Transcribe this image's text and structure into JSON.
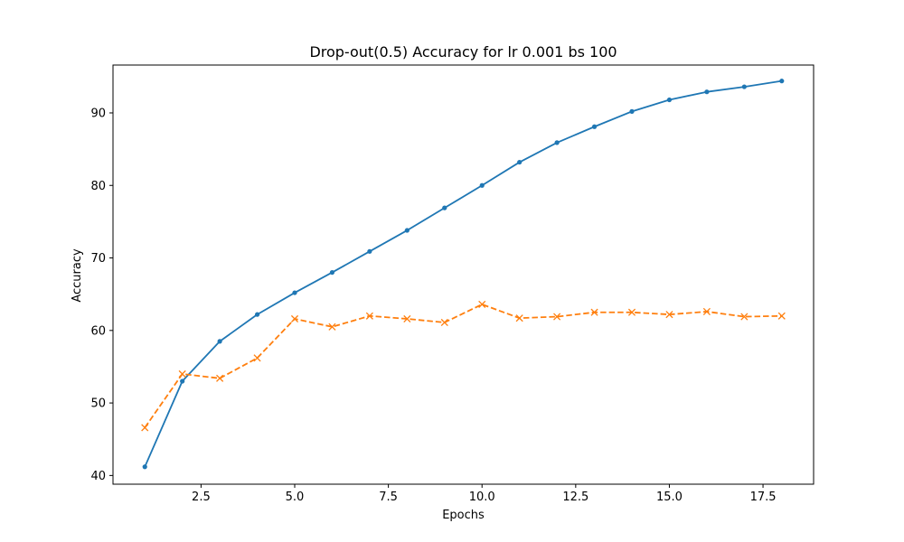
{
  "chart_data": {
    "type": "line",
    "title": "Drop-out(0.5) Accuracy for lr 0.001 bs 100",
    "xlabel": "Epochs",
    "ylabel": "Accuracy",
    "xlim": [
      0.15,
      18.85
    ],
    "ylim": [
      38.8,
      96.6
    ],
    "xticks": [
      2.5,
      5.0,
      7.5,
      10.0,
      12.5,
      15.0,
      17.5
    ],
    "xtick_labels": [
      "2.5",
      "5.0",
      "7.5",
      "10.0",
      "12.5",
      "15.0",
      "17.5"
    ],
    "yticks": [
      40,
      50,
      60,
      70,
      80,
      90
    ],
    "ytick_labels": [
      "40",
      "50",
      "60",
      "70",
      "80",
      "90"
    ],
    "grid": false,
    "legend": "none",
    "x": [
      1,
      2,
      3,
      4,
      5,
      6,
      7,
      8,
      9,
      10,
      11,
      12,
      13,
      14,
      15,
      16,
      17,
      18
    ],
    "series": [
      {
        "color": "#1f77b4",
        "linestyle": "solid",
        "marker": "dot",
        "values": [
          41.2,
          53.0,
          58.5,
          62.2,
          65.2,
          68.0,
          70.9,
          73.8,
          76.9,
          80.0,
          83.2,
          85.9,
          88.1,
          90.2,
          91.8,
          92.9,
          93.6,
          94.4
        ]
      },
      {
        "color": "#ff7f0e",
        "linestyle": "dashed",
        "marker": "x",
        "values": [
          46.6,
          54.0,
          53.4,
          56.2,
          61.6,
          60.5,
          62.0,
          61.6,
          61.1,
          63.6,
          61.7,
          61.9,
          62.5,
          62.5,
          62.2,
          62.6,
          61.9,
          62.0
        ]
      }
    ]
  }
}
